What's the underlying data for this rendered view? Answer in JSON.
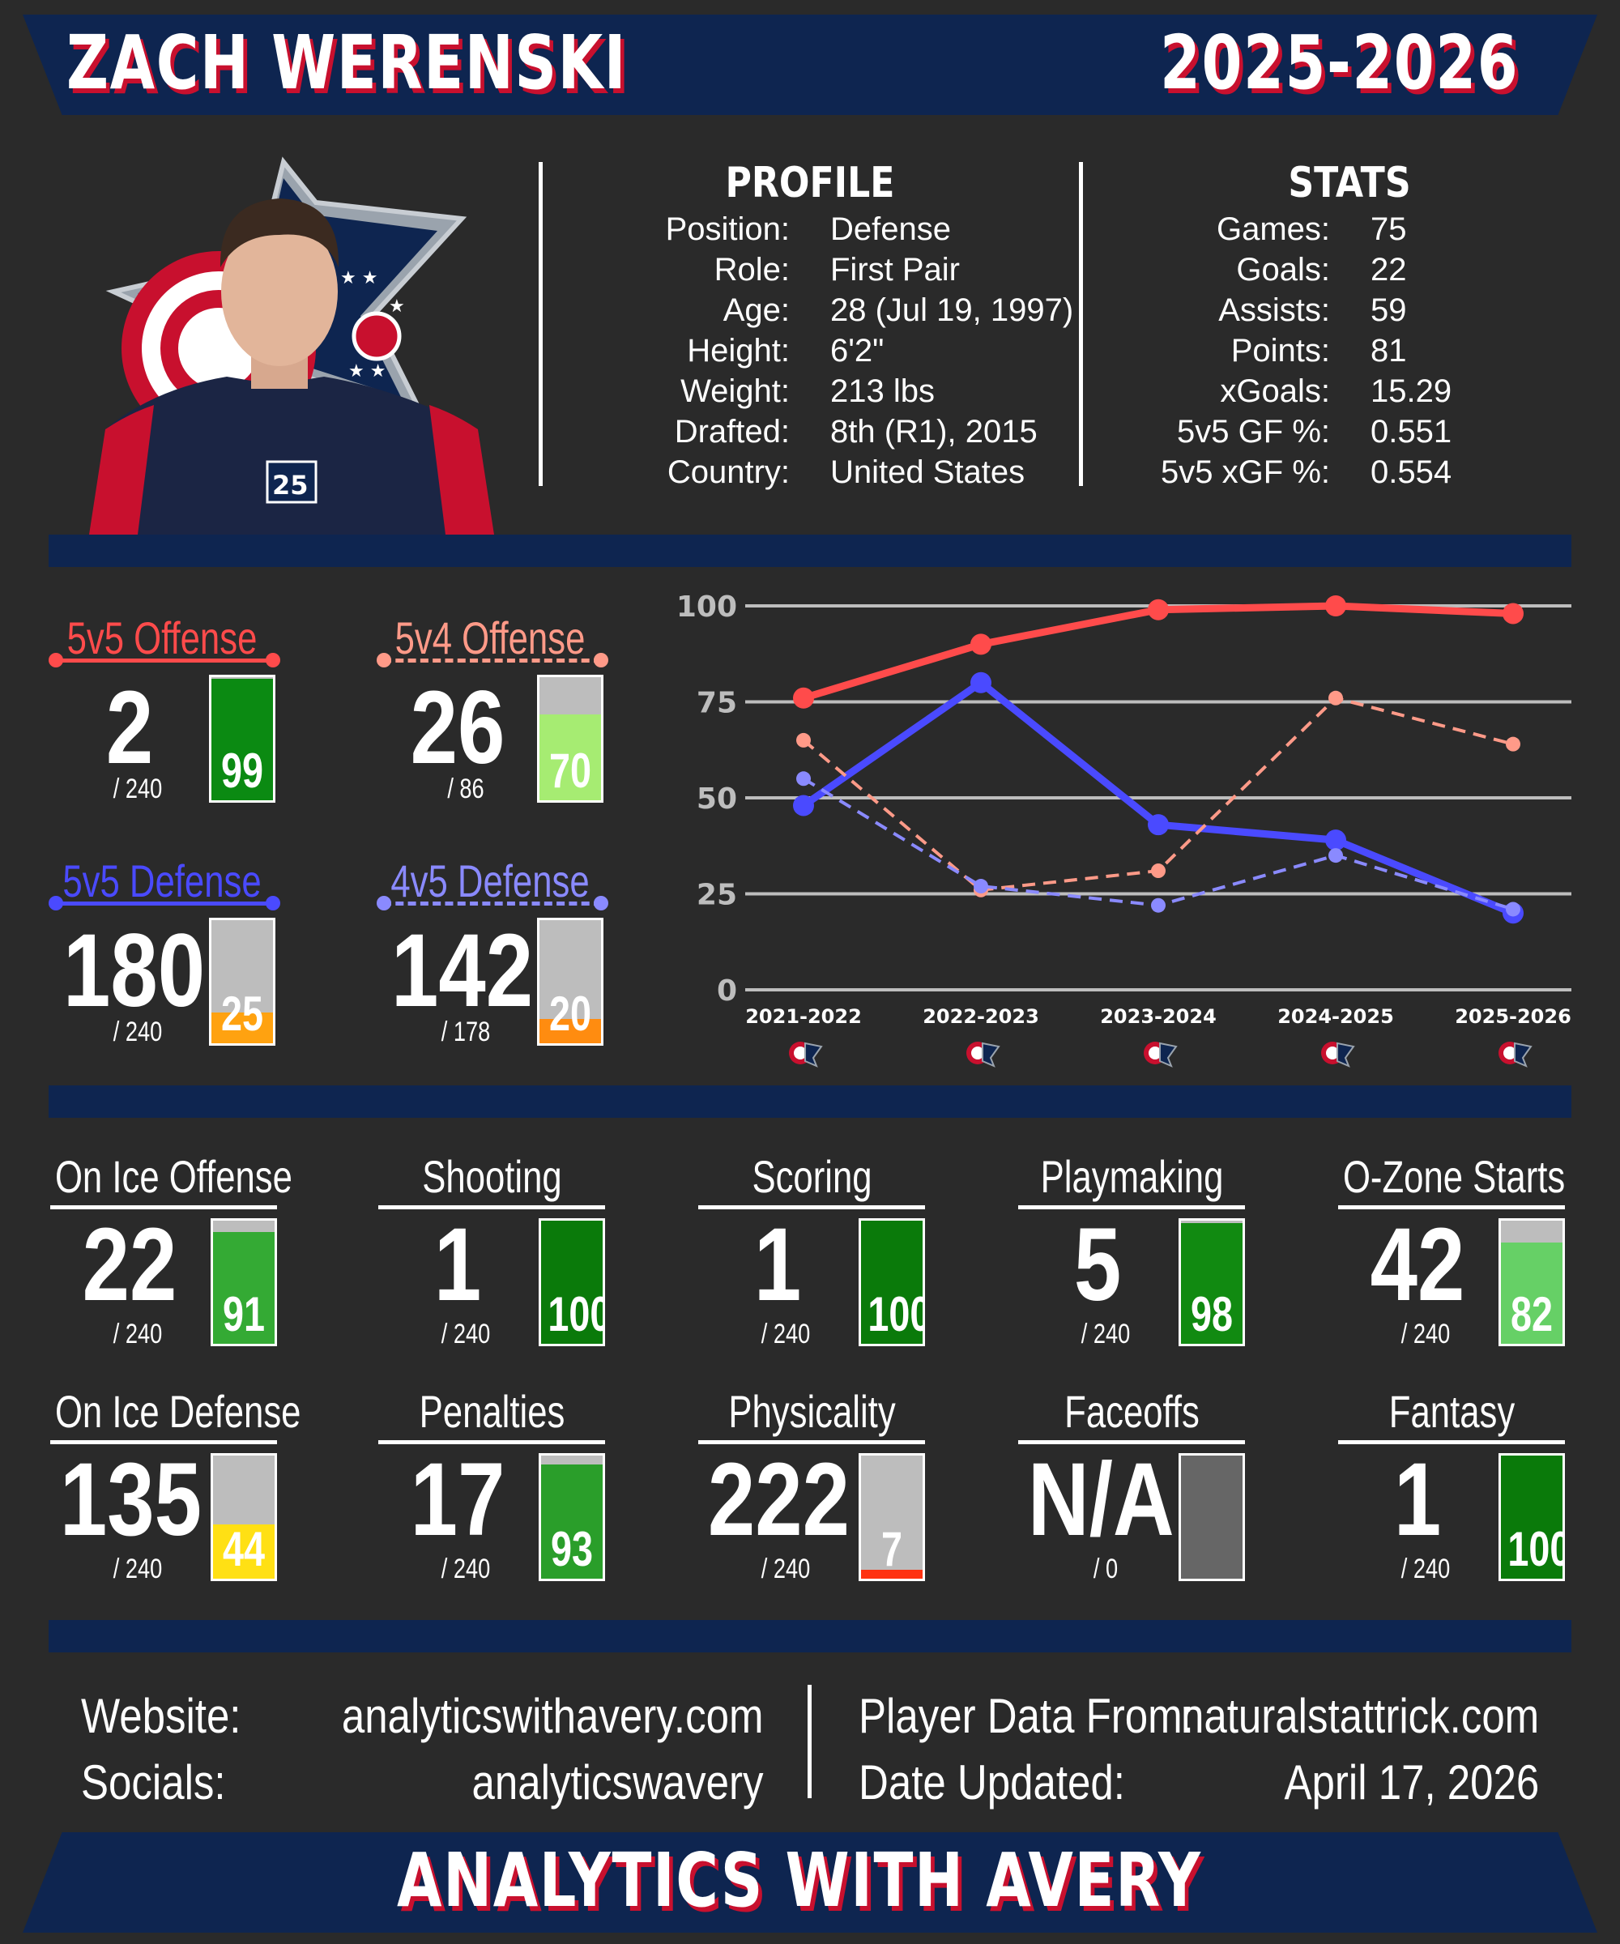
{
  "header": {
    "player_name": "ZACH WERENSKI",
    "season": "2025-2026"
  },
  "profile": {
    "title": "PROFILE",
    "rows": [
      {
        "label": "Position:",
        "value": "Defense"
      },
      {
        "label": "Role:",
        "value": "First Pair"
      },
      {
        "label": "Age:",
        "value": "28 (Jul 19, 1997)"
      },
      {
        "label": "Height:",
        "value": "6'2\""
      },
      {
        "label": "Weight:",
        "value": "213 lbs"
      },
      {
        "label": "Drafted:",
        "value": "8th (R1), 2015"
      },
      {
        "label": "Country:",
        "value": "United States"
      }
    ]
  },
  "stats": {
    "title": "STATS",
    "rows": [
      {
        "label": "Games:",
        "value": "75"
      },
      {
        "label": "Goals:",
        "value": "22"
      },
      {
        "label": "Assists:",
        "value": "59"
      },
      {
        "label": "Points:",
        "value": "81"
      },
      {
        "label": "xGoals:",
        "value": "15.29"
      },
      {
        "label": "5v5 GF %:",
        "value": "0.551"
      },
      {
        "label": "5v5 xGF %:",
        "value": "0.554"
      }
    ]
  },
  "special": [
    {
      "title": "5v5 Offense",
      "rank": "2",
      "out_of": "/ 240",
      "pct": 99,
      "color": "#ff4b4b",
      "fill": "#0b8a12",
      "dashed": false
    },
    {
      "title": "5v4 Offense",
      "rank": "26",
      "out_of": "/ 86",
      "pct": 70,
      "color": "#ff9a88",
      "fill": "#a6ec72",
      "dashed": true
    },
    {
      "title": "5v5 Defense",
      "rank": "180",
      "out_of": "/ 240",
      "pct": 25,
      "color": "#4a4aff",
      "fill": "#ffa210",
      "dashed": false
    },
    {
      "title": "4v5 Defense",
      "rank": "142",
      "out_of": "/ 178",
      "pct": 20,
      "color": "#8a8aff",
      "fill": "#ff8c10",
      "dashed": true
    }
  ],
  "chart_data": {
    "type": "line",
    "categories": [
      "2021-2022",
      "2022-2023",
      "2023-2024",
      "2024-2025",
      "2025-2026"
    ],
    "ylim": [
      0,
      100
    ],
    "yticks": [
      "0",
      "25",
      "50",
      "75",
      "100"
    ],
    "grid": true,
    "series": [
      {
        "values": [
          76,
          90,
          99,
          100,
          98
        ],
        "color": "#ff4b4b",
        "dashed": false
      },
      {
        "values": [
          48,
          80,
          43,
          39,
          20
        ],
        "color": "#4a4aff",
        "dashed": false
      },
      {
        "values": [
          65,
          26,
          31,
          76,
          64
        ],
        "color": "#ff9a88",
        "dashed": true
      },
      {
        "values": [
          55,
          27,
          22,
          35,
          21
        ],
        "color": "#8a8aff",
        "dashed": true
      }
    ]
  },
  "metrics": [
    {
      "title": "On Ice Offense",
      "rank": "22",
      "out_of": "/ 240",
      "pct": "91",
      "pct_num": 91,
      "fill": "#34aa34"
    },
    {
      "title": "Shooting",
      "rank": "1",
      "out_of": "/ 240",
      "pct": "100",
      "pct_num": 100,
      "fill": "#0a7a0a"
    },
    {
      "title": "Scoring",
      "rank": "1",
      "out_of": "/ 240",
      "pct": "100",
      "pct_num": 100,
      "fill": "#0a7a0a"
    },
    {
      "title": "Playmaking",
      "rank": "5",
      "out_of": "/ 240",
      "pct": "98",
      "pct_num": 98,
      "fill": "#118a11"
    },
    {
      "title": "O-Zone Starts",
      "rank": "42",
      "out_of": "/ 240",
      "pct": "82",
      "pct_num": 82,
      "fill": "#66d066"
    },
    {
      "title": "On Ice Defense",
      "rank": "135",
      "out_of": "/ 240",
      "pct": "44",
      "pct_num": 44,
      "fill": "#ffe014"
    },
    {
      "title": "Penalties",
      "rank": "17",
      "out_of": "/ 240",
      "pct": "93",
      "pct_num": 93,
      "fill": "#2a9e2a"
    },
    {
      "title": "Physicality",
      "rank": "222",
      "out_of": "/ 240",
      "pct": "7",
      "pct_num": 7,
      "fill": "#ff3210"
    },
    {
      "title": "Faceoffs",
      "rank": "N/A",
      "out_of": "/ 0",
      "pct": "",
      "pct_num": 0,
      "fill": "#666666",
      "empty": true
    },
    {
      "title": "Fantasy",
      "rank": "1",
      "out_of": "/ 240",
      "pct": "100",
      "pct_num": 100,
      "fill": "#0a7a0a"
    }
  ],
  "footer": {
    "website_label": "Website:",
    "website_value": "analyticswithavery.com",
    "socials_label": "Socials:",
    "socials_value": "analyticswavery",
    "source_label": "Player Data From:",
    "source_value": "naturalstattrick.com",
    "updated_label": "Date Updated:",
    "updated_value": "April 17, 2026"
  },
  "brand": {
    "name": "ANALYTICS WITH AVERY"
  },
  "colors": {
    "navy": "#0e2550",
    "red": "#c8102e",
    "background": "#2a2a2a"
  },
  "icons": {
    "team_logo": "blue-jackets-logo-icon",
    "player_photo": "player-headshot"
  }
}
